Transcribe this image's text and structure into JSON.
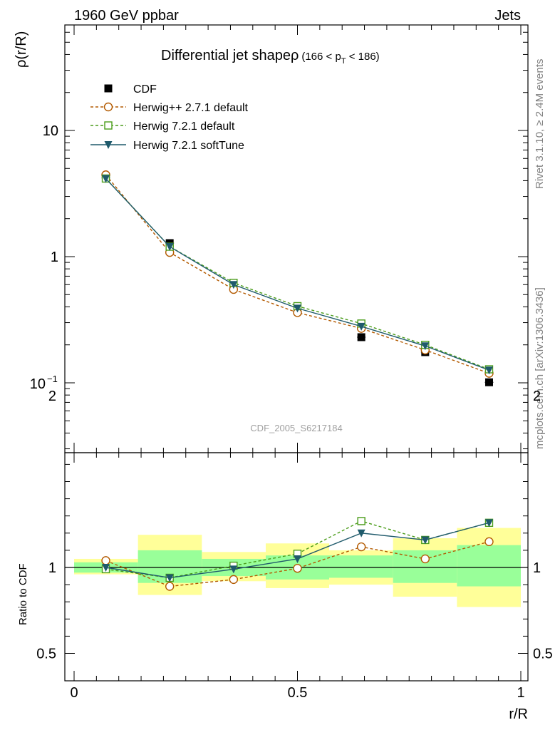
{
  "header": {
    "process": "1960 GeV ppbar",
    "category": "Jets"
  },
  "side_labels": {
    "rivet": "Rivet 3.1.10, ≥ 2.4M events",
    "source": "mcplots.cern.ch [arXiv:1306.3436]"
  },
  "watermark": "CDF_2005_S6217184",
  "colors": {
    "data": "#000000",
    "herwigpp": "#b35a00",
    "herwig721_default": "#4a9c1a",
    "herwig721_soft": "#1f5a6b",
    "band_inner": "#99ff99",
    "band_outer": "#ffff99"
  },
  "chart_data": [
    {
      "type": "line",
      "title_main": "Differential jet shapeρ",
      "title_cut": "(166 < p",
      "title_cut_sub": "T",
      "title_cut_end": " < 186)",
      "ylabel": "ρ(r/R)",
      "xlabel": "",
      "yscale": "log",
      "ylim": [
        0.03,
        60
      ],
      "xlim": [
        -0.02,
        1.0
      ],
      "y_ticks": [
        {
          "value": 10,
          "label": "10"
        },
        {
          "value": 1,
          "label": "1"
        },
        {
          "value": 0.1,
          "label_base": "10",
          "label_exp": "−1"
        }
      ],
      "x": [
        0.071,
        0.214,
        0.357,
        0.5,
        0.643,
        0.786,
        0.929
      ],
      "series": [
        {
          "name": "CDF",
          "style": "data",
          "values": [
            4.2,
            1.28,
            0.6,
            0.37,
            0.23,
            0.175,
            0.101
          ]
        },
        {
          "name": "Herwig++ 2.7.1 default",
          "style": "herwigpp",
          "values": [
            4.45,
            1.08,
            0.55,
            0.36,
            0.27,
            0.182,
            0.119
          ]
        },
        {
          "name": "Herwig 7.2.1 default",
          "style": "herwig721_default",
          "values": [
            4.16,
            1.2,
            0.62,
            0.405,
            0.295,
            0.2,
            0.128
          ]
        },
        {
          "name": "Herwig 7.2.1 softTune",
          "style": "herwig721_soft",
          "values": [
            4.15,
            1.2,
            0.6,
            0.39,
            0.28,
            0.196,
            0.126
          ]
        }
      ]
    },
    {
      "type": "line",
      "ylabel": "Ratio to CDF",
      "xlabel": "r/R",
      "ylim": [
        0.42,
        2.3
      ],
      "xlim": [
        -0.02,
        1.0
      ],
      "y_ticks": [
        {
          "value": 0.5,
          "label": "0.5"
        },
        {
          "value": 1,
          "label": "1"
        },
        {
          "value": 2,
          "label": "2"
        }
      ],
      "x_ticks": [
        {
          "value": 0,
          "label": "0"
        },
        {
          "value": 0.5,
          "label": "0.5"
        },
        {
          "value": 1,
          "label": "1"
        }
      ],
      "bins": [
        [
          0.0,
          0.143
        ],
        [
          0.143,
          0.286
        ],
        [
          0.286,
          0.429
        ],
        [
          0.429,
          0.571
        ],
        [
          0.571,
          0.714
        ],
        [
          0.714,
          0.857
        ],
        [
          0.857,
          1.0
        ]
      ],
      "band_inner": [
        [
          0.97,
          1.03
        ],
        [
          0.91,
          1.1
        ],
        [
          0.95,
          1.05
        ],
        [
          0.93,
          1.07
        ],
        [
          0.94,
          1.07
        ],
        [
          0.91,
          1.1
        ],
        [
          0.89,
          1.13
        ]
      ],
      "band_outer": [
        [
          0.96,
          1.05
        ],
        [
          0.84,
          1.19
        ],
        [
          0.92,
          1.09
        ],
        [
          0.88,
          1.14
        ],
        [
          0.9,
          1.1
        ],
        [
          0.83,
          1.17
        ],
        [
          0.77,
          1.23
        ]
      ],
      "x": [
        0.071,
        0.214,
        0.357,
        0.5,
        0.643,
        0.786,
        0.929
      ],
      "series": [
        {
          "name": "Herwig++ 2.7.1 default",
          "style": "herwigpp",
          "values": [
            1.04,
            0.89,
            0.93,
            0.995,
            1.12,
            1.05,
            1.15
          ]
        },
        {
          "name": "Herwig 7.2.1 default",
          "style": "herwig721_default",
          "values": [
            0.99,
            0.94,
            1.01,
            1.08,
            1.27,
            1.16,
            1.26
          ]
        },
        {
          "name": "Herwig 7.2.1 softTune",
          "style": "herwig721_soft",
          "values": [
            1.0,
            0.94,
            0.99,
            1.05,
            1.2,
            1.16,
            1.26
          ]
        }
      ]
    }
  ]
}
